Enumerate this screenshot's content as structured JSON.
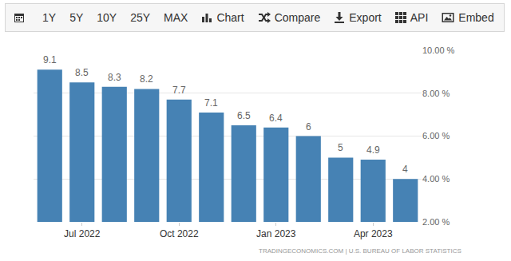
{
  "toolbar": {
    "buttons": [
      "1Y",
      "5Y",
      "10Y",
      "25Y",
      "MAX",
      "Chart",
      "Compare",
      "Export",
      "API",
      "Embed"
    ]
  },
  "chart_data": {
    "type": "bar",
    "categories": [
      null,
      "Jul 2022",
      null,
      null,
      "Oct 2022",
      null,
      null,
      "Jan 2023",
      null,
      null,
      "Apr 2023",
      null
    ],
    "values": [
      9.1,
      8.5,
      8.3,
      8.2,
      7.7,
      7.1,
      6.5,
      6.4,
      6,
      5,
      4.9,
      4
    ],
    "color": "#4682b4",
    "ylim": [
      2,
      10
    ],
    "yticks": [
      {
        "value": 2,
        "label": "2.00 %"
      },
      {
        "value": 4,
        "label": "4.00 %"
      },
      {
        "value": 6,
        "label": "6.00 %"
      },
      {
        "value": 8,
        "label": "8.00 %"
      },
      {
        "value": 10,
        "label": "10.00 %"
      }
    ],
    "grid": true,
    "data_labels": true,
    "annotations": [
      "TRADINGECONOMICS.COM | U.S. BUREAU OF LABOR STATISTICS"
    ]
  }
}
